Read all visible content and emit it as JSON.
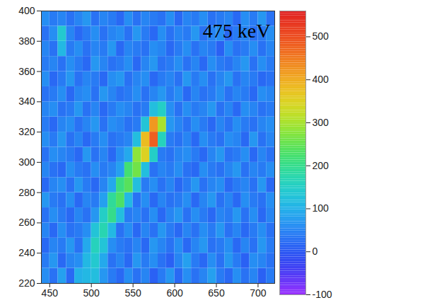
{
  "chart_data": {
    "type": "heatmap",
    "title": "475 keV",
    "xlim": [
      440,
      720
    ],
    "ylim": [
      220,
      400
    ],
    "xticks": [
      450,
      500,
      550,
      600,
      650,
      700
    ],
    "yticks": [
      220,
      240,
      260,
      280,
      300,
      320,
      340,
      360,
      380,
      400
    ],
    "x_edges": [
      440,
      450,
      460,
      470,
      480,
      490,
      500,
      510,
      520,
      530,
      540,
      550,
      560,
      570,
      580,
      590,
      600,
      610,
      620,
      630,
      640,
      650,
      660,
      670,
      680,
      690,
      700,
      710,
      720
    ],
    "y_edges": [
      220,
      230,
      240,
      250,
      260,
      270,
      280,
      290,
      300,
      310,
      320,
      330,
      340,
      350,
      360,
      370,
      380,
      390,
      400
    ],
    "z": [
      [
        60,
        30,
        80,
        20,
        100,
        110,
        120,
        70,
        40,
        20,
        60,
        30,
        50,
        10,
        40,
        70,
        20,
        60,
        30,
        50,
        80,
        40,
        20,
        60,
        30,
        50,
        10,
        40
      ],
      [
        40,
        70,
        20,
        50,
        60,
        110,
        140,
        90,
        30,
        50,
        20,
        70,
        40,
        60,
        30,
        10,
        50,
        80,
        40,
        20,
        60,
        30,
        70,
        40,
        10,
        60,
        50,
        30
      ],
      [
        20,
        50,
        40,
        70,
        30,
        90,
        160,
        130,
        60,
        40,
        30,
        50,
        20,
        70,
        50,
        30,
        60,
        20,
        50,
        70,
        30,
        40,
        60,
        20,
        50,
        30,
        70,
        40
      ],
      [
        50,
        20,
        60,
        30,
        40,
        60,
        130,
        170,
        110,
        30,
        60,
        20,
        50,
        30,
        70,
        40,
        20,
        50,
        30,
        60,
        40,
        70,
        30,
        50,
        20,
        40,
        60,
        30
      ],
      [
        30,
        60,
        40,
        20,
        50,
        30,
        70,
        150,
        200,
        120,
        40,
        50,
        30,
        60,
        20,
        50,
        70,
        30,
        60,
        40,
        20,
        50,
        40,
        70,
        30,
        60,
        20,
        50
      ],
      [
        70,
        40,
        30,
        60,
        20,
        50,
        40,
        80,
        190,
        230,
        110,
        30,
        60,
        20,
        50,
        30,
        40,
        60,
        20,
        50,
        70,
        30,
        50,
        20,
        60,
        40,
        30,
        60
      ],
      [
        20,
        50,
        60,
        30,
        70,
        40,
        20,
        50,
        90,
        210,
        240,
        120,
        40,
        60,
        30,
        50,
        20,
        40,
        70,
        30,
        50,
        60,
        20,
        40,
        50,
        30,
        70,
        20
      ],
      [
        50,
        30,
        20,
        60,
        40,
        30,
        60,
        40,
        50,
        80,
        220,
        260,
        120,
        30,
        50,
        40,
        60,
        30,
        20,
        60,
        40,
        30,
        50,
        70,
        30,
        50,
        40,
        60
      ],
      [
        30,
        60,
        50,
        40,
        20,
        70,
        30,
        50,
        20,
        60,
        90,
        280,
        350,
        150,
        40,
        30,
        50,
        60,
        40,
        20,
        50,
        70,
        30,
        40,
        60,
        20,
        50,
        30
      ],
      [
        60,
        40,
        70,
        30,
        50,
        20,
        40,
        60,
        30,
        40,
        50,
        120,
        380,
        480,
        160,
        40,
        30,
        50,
        20,
        60,
        40,
        30,
        60,
        50,
        20,
        70,
        30,
        50
      ],
      [
        40,
        20,
        50,
        60,
        30,
        50,
        70,
        30,
        60,
        50,
        30,
        40,
        130,
        420,
        300,
        70,
        50,
        30,
        60,
        40,
        20,
        50,
        30,
        60,
        40,
        30,
        50,
        60
      ],
      [
        50,
        60,
        30,
        40,
        70,
        30,
        50,
        20,
        40,
        60,
        50,
        30,
        40,
        120,
        150,
        60,
        30,
        60,
        40,
        50,
        70,
        30,
        50,
        20,
        60,
        50,
        30,
        40
      ],
      [
        30,
        40,
        60,
        20,
        50,
        60,
        30,
        70,
        50,
        30,
        40,
        60,
        30,
        50,
        70,
        40,
        60,
        20,
        50,
        30,
        40,
        60,
        30,
        50,
        40,
        20,
        60,
        50
      ],
      [
        60,
        20,
        40,
        70,
        30,
        50,
        40,
        20,
        60,
        70,
        30,
        50,
        60,
        20,
        40,
        50,
        30,
        70,
        40,
        60,
        30,
        50,
        70,
        30,
        50,
        40,
        20,
        30
      ],
      [
        40,
        50,
        30,
        60,
        40,
        20,
        70,
        50,
        30,
        40,
        60,
        20,
        50,
        70,
        30,
        40,
        60,
        30,
        50,
        20,
        60,
        40,
        30,
        50,
        70,
        30,
        60,
        40
      ],
      [
        50,
        30,
        110,
        40,
        60,
        30,
        50,
        40,
        70,
        20,
        50,
        40,
        30,
        60,
        50,
        20,
        40,
        60,
        30,
        50,
        40,
        10,
        60,
        30,
        40,
        60,
        30,
        50
      ],
      [
        30,
        60,
        140,
        50,
        20,
        40,
        60,
        30,
        50,
        60,
        30,
        70,
        40,
        20,
        60,
        30,
        50,
        40,
        70,
        30,
        50,
        60,
        20,
        40,
        50,
        30,
        40,
        60
      ],
      [
        60,
        40,
        50,
        30,
        50,
        70,
        30,
        50,
        40,
        20,
        60,
        30,
        50,
        40,
        30,
        60,
        20,
        50,
        40,
        60,
        30,
        40,
        50,
        20,
        60,
        40,
        70,
        30
      ]
    ],
    "colorbar": {
      "range": [
        -100,
        560
      ],
      "ticks": [
        -100,
        0,
        100,
        200,
        300,
        400,
        500
      ]
    }
  }
}
